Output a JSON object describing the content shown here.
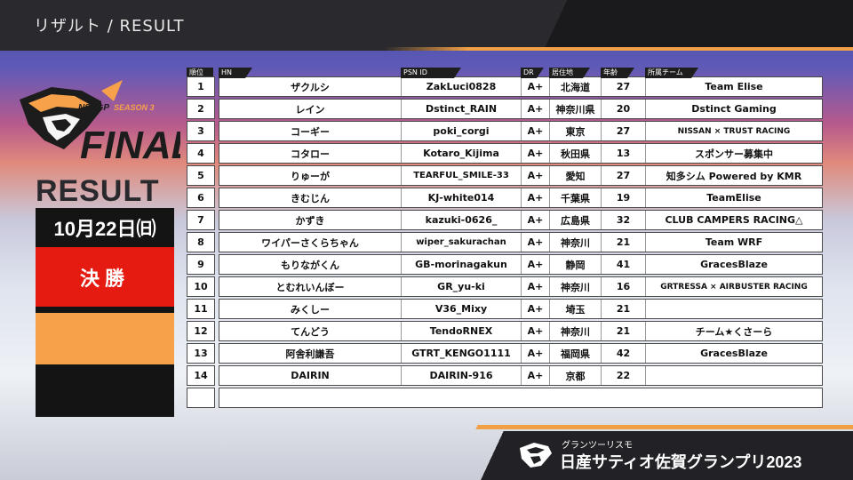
{
  "header": {
    "title": "リザルト / RESULT"
  },
  "logo": {
    "brand": "NSSGP",
    "season": "SEASON 3",
    "final": "FINAL"
  },
  "left_panel": {
    "result_label": "RESULT",
    "date": "10月22日㈰",
    "stage": "決勝"
  },
  "table": {
    "col_headers": {
      "rank": "順位",
      "hn": "HN",
      "psn": "PSN ID",
      "dr": "DR",
      "residence": "居住地",
      "age": "年齢",
      "team": "所属チーム"
    },
    "rows": [
      {
        "rank": "1",
        "hn": "ザクルシ",
        "psn": "ZakLuci0828",
        "dr": "A+",
        "res": "北海道",
        "age": "27",
        "team": "Team Elise"
      },
      {
        "rank": "2",
        "hn": "レイン",
        "psn": "Dstinct_RAIN",
        "dr": "A+",
        "res": "神奈川県",
        "age": "20",
        "team": "Dstinct Gaming"
      },
      {
        "rank": "3",
        "hn": "コーギー",
        "psn": "poki_corgi",
        "dr": "A+",
        "res": "東京",
        "age": "27",
        "team": "NISSAN × TRUST RACING"
      },
      {
        "rank": "4",
        "hn": "コタロー",
        "psn": "Kotaro_Kijima",
        "dr": "A+",
        "res": "秋田県",
        "age": "13",
        "team": "スポンサー募集中"
      },
      {
        "rank": "5",
        "hn": "りゅーが",
        "psn": "TEARFUL_SMILE-33",
        "dr": "A+",
        "res": "愛知",
        "age": "27",
        "team": "知多シム Powered by KMR"
      },
      {
        "rank": "6",
        "hn": "きむじん",
        "psn": "KJ-white014",
        "dr": "A+",
        "res": "千葉県",
        "age": "19",
        "team": "TeamElise"
      },
      {
        "rank": "7",
        "hn": "かずき",
        "psn": "kazuki-0626_",
        "dr": "A+",
        "res": "広島県",
        "age": "32",
        "team": "CLUB CAMPERS RACING△"
      },
      {
        "rank": "8",
        "hn": "ワイパーさくらちゃん",
        "psn": "wiper_sakurachan",
        "dr": "A+",
        "res": "神奈川",
        "age": "21",
        "team": "Team WRF"
      },
      {
        "rank": "9",
        "hn": "もりながくん",
        "psn": "GB-morinagakun",
        "dr": "A+",
        "res": "静岡",
        "age": "41",
        "team": "GracesBlaze"
      },
      {
        "rank": "10",
        "hn": "とむれいんぼー",
        "psn": "GR_yu-ki",
        "dr": "A+",
        "res": "神奈川",
        "age": "16",
        "team": "GRTRESSA × AIRBUSTER RACING"
      },
      {
        "rank": "11",
        "hn": "みくしー",
        "psn": "V36_Mixy",
        "dr": "A+",
        "res": "埼玉",
        "age": "21",
        "team": ""
      },
      {
        "rank": "12",
        "hn": "てんどう",
        "psn": "TendoRNEX",
        "dr": "A+",
        "res": "神奈川",
        "age": "21",
        "team": "チーム★くさーら"
      },
      {
        "rank": "13",
        "hn": "阿舎利謙吾",
        "psn": "GTRT_KENGO1111",
        "dr": "A+",
        "res": "福岡県",
        "age": "42",
        "team": "GracesBlaze"
      },
      {
        "rank": "14",
        "hn": "DAIRIN",
        "psn": "DAIRIN-916",
        "dr": "A+",
        "res": "京都",
        "age": "22",
        "team": ""
      }
    ]
  },
  "footer": {
    "sub": "グランツーリスモ",
    "main": "日産サティオ佐賀グランプリ2023"
  },
  "colors": {
    "accent_orange": "#f7a14a",
    "accent_red": "#e51b12",
    "dark": "#141414"
  }
}
